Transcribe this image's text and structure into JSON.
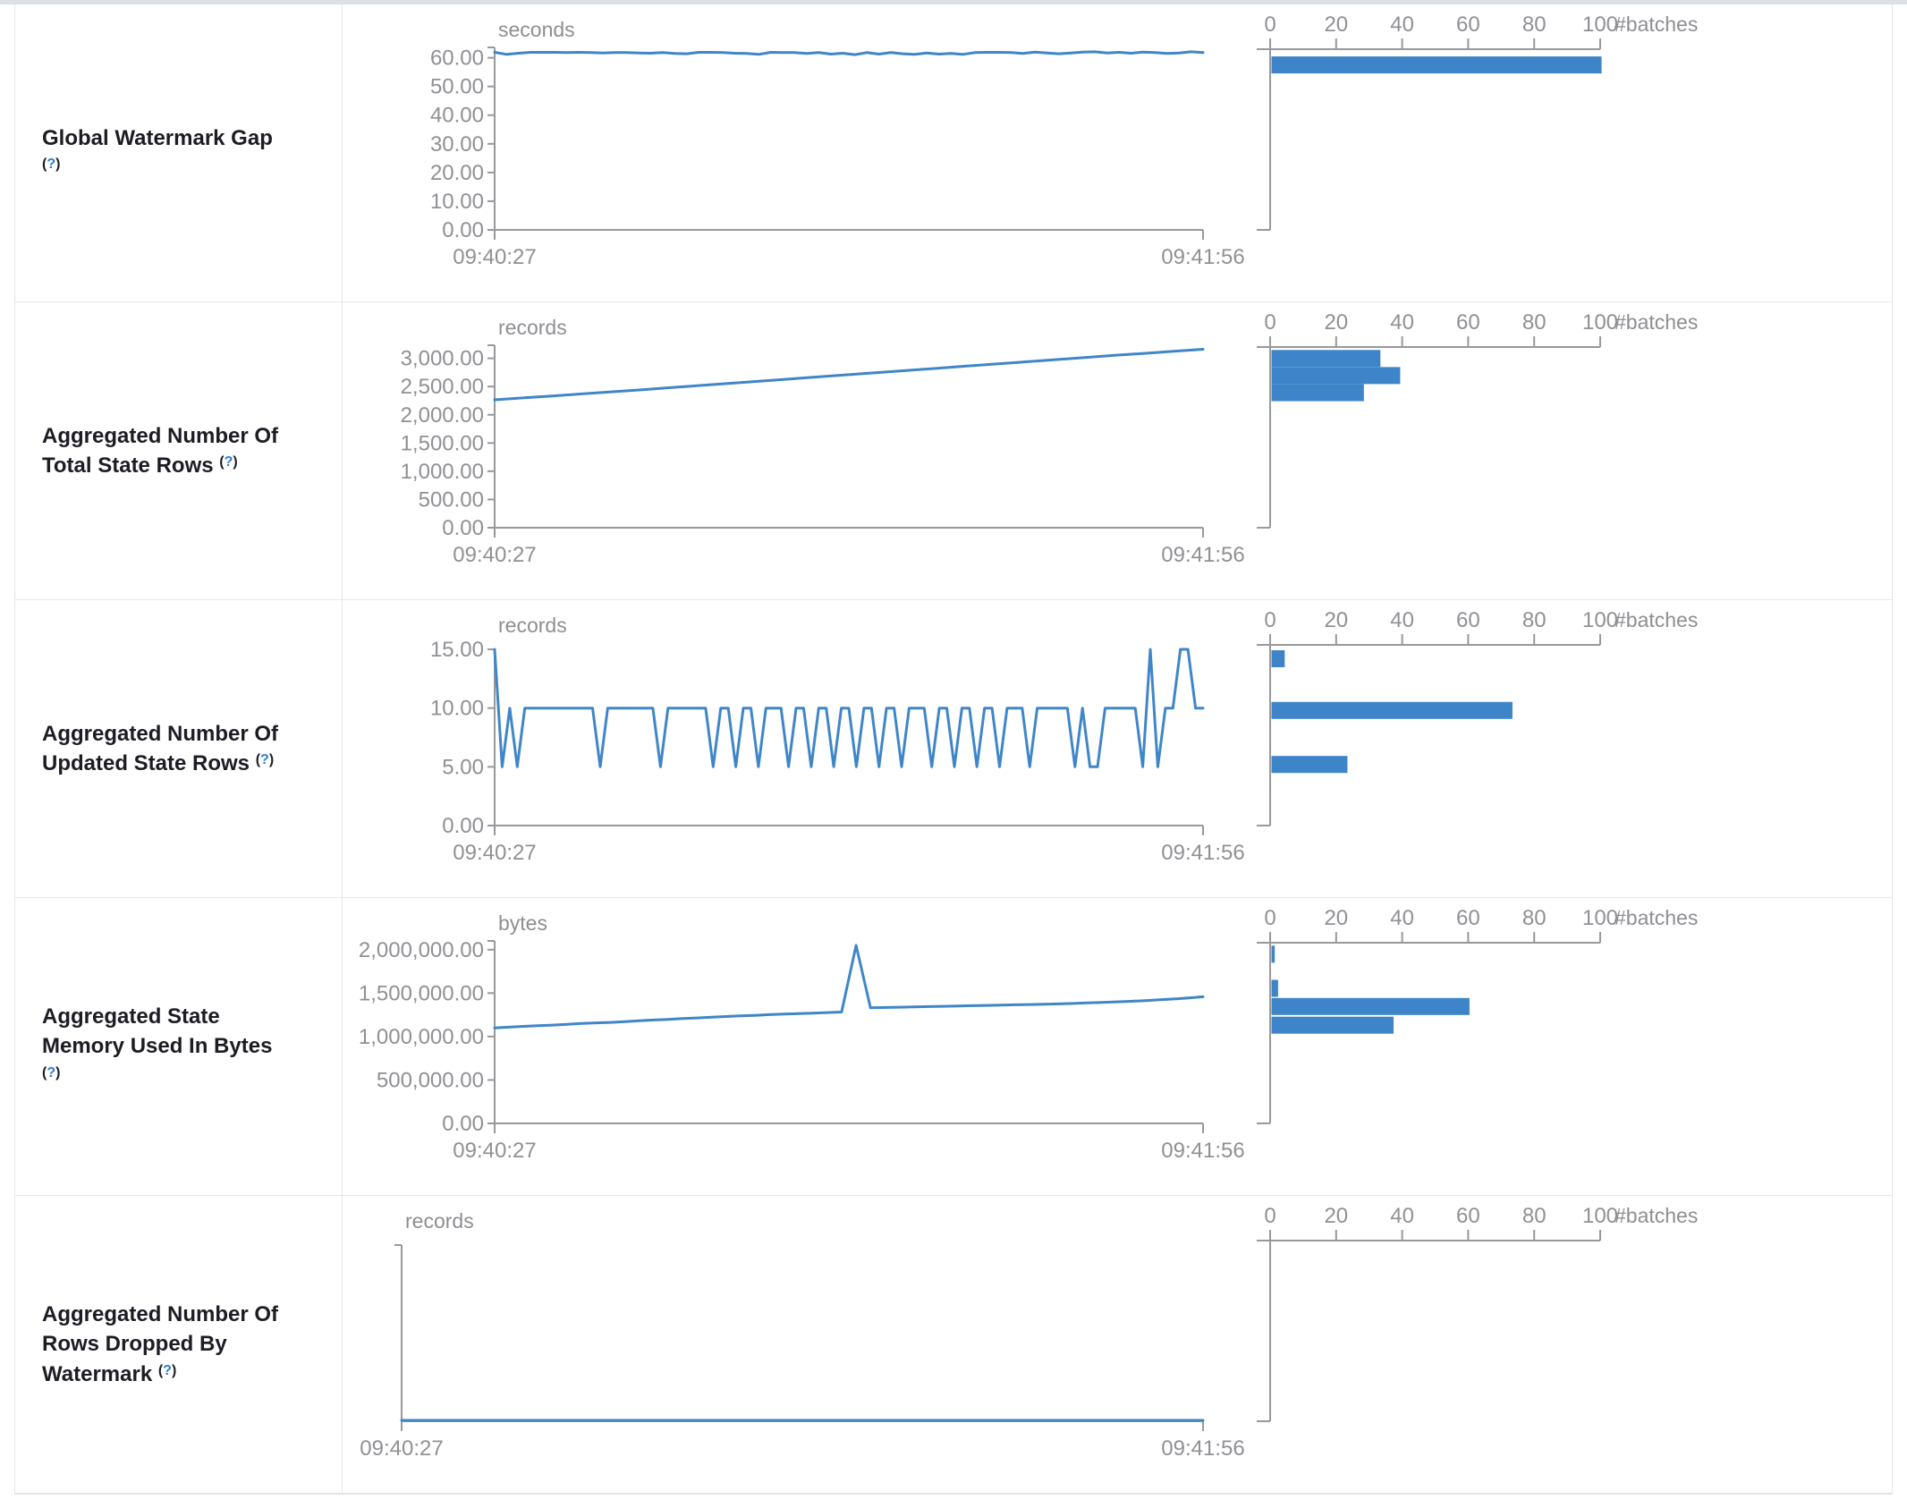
{
  "page": {
    "background": "#ffffff",
    "top_strip_color": "#dde0e4",
    "table_border_color": "#e3e6ea",
    "accent_blue": "#3d85c8",
    "line_blue": "#3f86c9",
    "axis_gray": "#98989d",
    "text_gray": "#909095",
    "title_color": "#1c1c24",
    "help_open": "(",
    "help_mark": "?",
    "help_close": ")",
    "help_color": "#2e7bd6"
  },
  "time_axis": {
    "start_label": "09:40:27",
    "end_label": "09:41:56"
  },
  "batch_axis": {
    "tick_values": [
      0,
      20,
      40,
      60,
      80,
      100
    ],
    "tick_labels": [
      "0",
      "20",
      "40",
      "60",
      "80",
      "100"
    ],
    "unit_label": "#batches",
    "max": 100
  },
  "chart_data": [
    {
      "metric": "Global Watermark Gap",
      "label_lines": [
        "Global Watermark Gap"
      ],
      "help_on_new_line": true,
      "timeline": {
        "type": "line",
        "unit": "seconds",
        "x_start_label": "09:40:27",
        "x_end_label": "09:41:56",
        "ylim": [
          0,
          63
        ],
        "axis_max": 63,
        "terminal_tick": true,
        "yticks": [
          {
            "v": 0,
            "label": "0.00"
          },
          {
            "v": 10,
            "label": "10.00"
          },
          {
            "v": 20,
            "label": "20.00"
          },
          {
            "v": 30,
            "label": "30.00"
          },
          {
            "v": 40,
            "label": "40.00"
          },
          {
            "v": 50,
            "label": "50.00"
          },
          {
            "v": 60,
            "label": "60.00"
          }
        ],
        "values": [
          61.9,
          61.2,
          61.6,
          61.9,
          61.9,
          61.9,
          61.8,
          61.9,
          61.8,
          61.7,
          61.8,
          61.8,
          61.7,
          61.6,
          61.8,
          61.5,
          61.4,
          61.9,
          61.9,
          61.8,
          61.6,
          61.5,
          61.2,
          61.9,
          61.8,
          61.8,
          61.5,
          61.8,
          61.3,
          61.6,
          61.1,
          61.8,
          61.3,
          61.8,
          61.4,
          61.2,
          61.7,
          61.3,
          61.5,
          61.2,
          61.8,
          61.9,
          61.9,
          61.8,
          61.5,
          62.0,
          61.7,
          61.4,
          61.7,
          62.0,
          62.1,
          61.7,
          61.9,
          61.6,
          62.0,
          61.8,
          61.5,
          61.7,
          62.1,
          61.8
        ]
      },
      "histogram": {
        "type": "bar",
        "orientation": "horizontal",
        "xlabel": "#batches",
        "xlim": [
          0,
          100
        ],
        "bars": [
          {
            "value": 57.5,
            "count": 100
          }
        ]
      }
    },
    {
      "metric": "Aggregated Number Of Total State Rows",
      "label_lines": [
        "Aggregated Number Of",
        "Total State Rows"
      ],
      "help_on_new_line": false,
      "timeline": {
        "type": "line",
        "unit": "records",
        "x_start_label": "09:40:27",
        "x_end_label": "09:41:56",
        "ylim": [
          0,
          3200
        ],
        "axis_max": 3200,
        "terminal_tick": true,
        "yticks": [
          {
            "v": 0,
            "label": "0.00"
          },
          {
            "v": 500,
            "label": "500.00"
          },
          {
            "v": 1000,
            "label": "1,000.00"
          },
          {
            "v": 1500,
            "label": "1,500.00"
          },
          {
            "v": 2000,
            "label": "2,000.00"
          },
          {
            "v": 2500,
            "label": "2,500.00"
          },
          {
            "v": 3000,
            "label": "3,000.00"
          }
        ],
        "values": [
          2265,
          2300,
          2335,
          2372,
          2408,
          2445,
          2482,
          2520,
          2558,
          2596,
          2634,
          2672,
          2710,
          2748,
          2786,
          2824,
          2862,
          2900,
          2938,
          2976,
          3014,
          3052,
          3088,
          3124,
          3160
        ]
      },
      "histogram": {
        "type": "bar",
        "orientation": "horizontal",
        "xlabel": "#batches",
        "xlim": [
          0,
          100
        ],
        "bars": [
          {
            "value": 2998,
            "count": 33
          },
          {
            "value": 2695,
            "count": 39
          },
          {
            "value": 2392,
            "count": 28
          }
        ]
      }
    },
    {
      "metric": "Aggregated Number Of Updated State Rows",
      "label_lines": [
        "Aggregated Number Of",
        "Updated State Rows"
      ],
      "help_on_new_line": false,
      "timeline": {
        "type": "line",
        "unit": "records",
        "x_start_label": "09:40:27",
        "x_end_label": "09:41:56",
        "ylim": [
          0,
          15.38
        ],
        "axis_max": 15.38,
        "terminal_tick": false,
        "yticks": [
          {
            "v": 0,
            "label": "0.00"
          },
          {
            "v": 5,
            "label": "5.00"
          },
          {
            "v": 10,
            "label": "10.00"
          },
          {
            "v": 15,
            "label": "15.00"
          }
        ],
        "values": [
          15,
          5,
          10,
          5,
          10,
          10,
          10,
          10,
          10,
          10,
          10,
          10,
          10,
          10,
          5,
          10,
          10,
          10,
          10,
          10,
          10,
          10,
          5,
          10,
          10,
          10,
          10,
          10,
          10,
          5,
          10,
          10,
          5,
          10,
          10,
          5,
          10,
          10,
          10,
          5,
          10,
          10,
          5,
          10,
          10,
          5,
          10,
          10,
          5,
          10,
          10,
          5,
          10,
          10,
          5,
          10,
          10,
          10,
          5,
          10,
          10,
          5,
          10,
          10,
          5,
          10,
          10,
          5,
          10,
          10,
          10,
          5,
          10,
          10,
          10,
          10,
          10,
          5,
          10,
          5,
          5,
          10,
          10,
          10,
          10,
          10,
          5,
          15,
          5,
          10,
          10,
          15,
          15,
          10,
          10
        ]
      },
      "histogram": {
        "type": "bar",
        "orientation": "horizontal",
        "xlabel": "#batches",
        "xlim": [
          0,
          100
        ],
        "bars": [
          {
            "value": 14.2,
            "count": 4
          },
          {
            "value": 9.8,
            "count": 73
          },
          {
            "value": 5.2,
            "count": 23
          }
        ]
      }
    },
    {
      "metric": "Aggregated State Memory Used In Bytes",
      "label_lines": [
        "Aggregated State",
        "Memory Used In Bytes"
      ],
      "help_on_new_line": true,
      "timeline": {
        "type": "line",
        "unit": "bytes",
        "x_start_label": "09:40:27",
        "x_end_label": "09:41:56",
        "ylim": [
          0,
          2080000
        ],
        "axis_max": 2080000,
        "terminal_tick": true,
        "yticks": [
          {
            "v": 0,
            "label": "0.00"
          },
          {
            "v": 500000,
            "label": "500,000.00"
          },
          {
            "v": 1000000,
            "label": "1,000,000.00"
          },
          {
            "v": 1500000,
            "label": "1,500,000.00"
          },
          {
            "v": 2000000,
            "label": "2,000,000.00"
          }
        ],
        "values": [
          1100000,
          1108000,
          1117000,
          1124000,
          1132000,
          1141000,
          1150000,
          1157000,
          1163000,
          1172000,
          1181000,
          1190000,
          1198000,
          1207000,
          1214000,
          1222000,
          1231000,
          1238000,
          1244000,
          1252000,
          1258000,
          1263000,
          1270000,
          1276000,
          1282000,
          2050000,
          1330000,
          1334000,
          1338000,
          1341000,
          1345000,
          1348000,
          1351000,
          1355000,
          1358000,
          1361000,
          1365000,
          1368000,
          1372000,
          1376000,
          1381000,
          1387000,
          1393000,
          1399000,
          1406000,
          1414000,
          1423000,
          1432000,
          1444000,
          1458000
        ]
      },
      "histogram": {
        "type": "bar",
        "orientation": "horizontal",
        "xlabel": "#batches",
        "xlim": [
          0,
          100
        ],
        "bars": [
          {
            "value": 1948000,
            "count": 1
          },
          {
            "value": 1555000,
            "count": 2
          },
          {
            "value": 1346000,
            "count": 60
          },
          {
            "value": 1131000,
            "count": 37
          }
        ]
      }
    },
    {
      "metric": "Aggregated Number Of Rows Dropped By Watermark",
      "label_lines": [
        "Aggregated Number Of",
        "Rows Dropped By",
        "Watermark"
      ],
      "help_on_new_line": false,
      "timeline": {
        "type": "line",
        "unit": "records",
        "x_start_label": "09:40:27",
        "x_end_label": "09:41:56",
        "ylim": [
          0,
          1
        ],
        "axis_max": 1,
        "terminal_tick": true,
        "yticks": [],
        "values": [
          0,
          0,
          0,
          0,
          0,
          0,
          0,
          0,
          0,
          0,
          0,
          0,
          0,
          0,
          0,
          0,
          0,
          0,
          0,
          0,
          0,
          0,
          0,
          0,
          0,
          0,
          0,
          0,
          0,
          0,
          0,
          0,
          0,
          0,
          0,
          0,
          0,
          0,
          0,
          0
        ]
      },
      "histogram": {
        "type": "bar",
        "orientation": "horizontal",
        "xlabel": "#batches",
        "xlim": [
          0,
          100
        ],
        "bars": []
      }
    }
  ]
}
